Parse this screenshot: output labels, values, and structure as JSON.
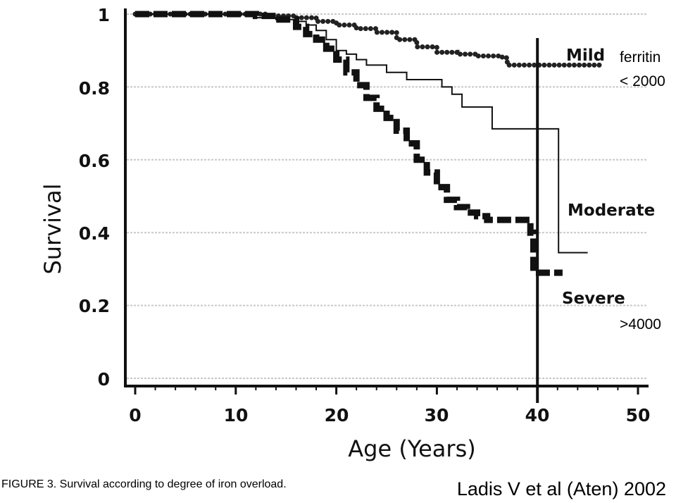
{
  "chart_data": {
    "type": "line",
    "xlabel": "Age (Years)",
    "ylabel": "Survival",
    "xlim": [
      0,
      50
    ],
    "ylim": [
      0,
      1
    ],
    "x_ticks": [
      "0",
      "10",
      "20",
      "30",
      "40",
      "50"
    ],
    "y_ticks": [
      "0",
      "0.2",
      "0.4",
      "0.6",
      "0.8",
      "1"
    ],
    "grid": true,
    "vertical_marker_x": 40,
    "series": [
      {
        "name": "Mild",
        "style": "dotted",
        "x": [
          0,
          10,
          13,
          16,
          18,
          20,
          22,
          24,
          26,
          28,
          30,
          32,
          34,
          36.5,
          37,
          46.5
        ],
        "y": [
          1.0,
          1.0,
          0.995,
          0.99,
          0.98,
          0.97,
          0.96,
          0.95,
          0.93,
          0.91,
          0.895,
          0.89,
          0.885,
          0.88,
          0.86,
          0.86
        ]
      },
      {
        "name": "Moderate",
        "style": "solid",
        "x": [
          0,
          10,
          12,
          14,
          16,
          17,
          18,
          19,
          20,
          21,
          22,
          23,
          25,
          27,
          30,
          30.5,
          31.5,
          32.5,
          35.5,
          42,
          42.1,
          45
        ],
        "y": [
          1.0,
          1.0,
          0.99,
          0.985,
          0.98,
          0.97,
          0.955,
          0.93,
          0.9,
          0.89,
          0.875,
          0.86,
          0.84,
          0.82,
          0.82,
          0.8,
          0.78,
          0.745,
          0.685,
          0.685,
          0.345,
          0.345
        ]
      },
      {
        "name": "Severe",
        "style": "thick-dashed",
        "x": [
          0,
          10,
          12,
          14,
          16,
          17,
          18,
          19,
          20,
          21,
          22,
          23,
          24,
          25,
          26,
          27,
          28,
          29,
          30,
          31,
          32,
          33,
          34,
          35,
          39,
          39.3,
          39.6,
          42.5
        ],
        "y": [
          1.0,
          1.0,
          0.995,
          0.985,
          0.965,
          0.945,
          0.93,
          0.905,
          0.875,
          0.84,
          0.805,
          0.77,
          0.74,
          0.715,
          0.68,
          0.645,
          0.6,
          0.565,
          0.525,
          0.49,
          0.47,
          0.455,
          0.445,
          0.435,
          0.435,
          0.4,
          0.29,
          0.29
        ]
      }
    ],
    "annotations": [
      "ferritin",
      "< 2000",
      ">4000"
    ]
  },
  "caption": "FIGURE 3. Survival according to degree of iron overload.",
  "citation": "Ladis V et al (Aten) 2002"
}
